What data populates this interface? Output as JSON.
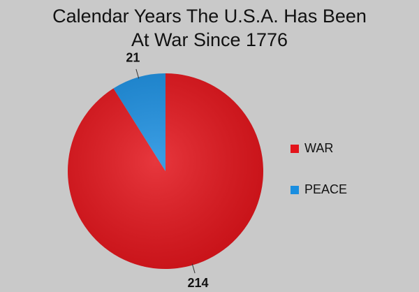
{
  "chart_data": {
    "type": "pie",
    "title": "Calendar Years The U.S.A. Has Been At War Since 1776",
    "categories": [
      "WAR",
      "PEACE"
    ],
    "values": [
      214,
      21
    ],
    "colors": [
      "#e3141b",
      "#1a8ee0"
    ],
    "legend": "right"
  }
}
